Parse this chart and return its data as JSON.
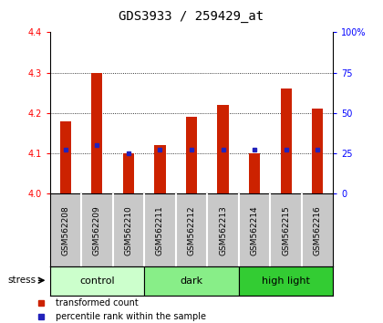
{
  "title": "GDS3933 / 259429_at",
  "samples": [
    "GSM562208",
    "GSM562209",
    "GSM562210",
    "GSM562211",
    "GSM562212",
    "GSM562213",
    "GSM562214",
    "GSM562215",
    "GSM562216"
  ],
  "bar_values": [
    4.18,
    4.3,
    4.1,
    4.12,
    4.19,
    4.22,
    4.1,
    4.26,
    4.21
  ],
  "percentile_values": [
    4.11,
    4.12,
    4.1,
    4.11,
    4.11,
    4.11,
    4.11,
    4.11,
    4.11
  ],
  "ylim": [
    4.0,
    4.4
  ],
  "yticks_left": [
    4.0,
    4.1,
    4.2,
    4.3,
    4.4
  ],
  "yticks_right": [
    0,
    25,
    50,
    75,
    100
  ],
  "bar_color": "#cc2200",
  "percentile_color": "#2222bb",
  "groups": [
    {
      "label": "control",
      "start": 0,
      "end": 3,
      "color": "#ccffcc"
    },
    {
      "label": "dark",
      "start": 3,
      "end": 6,
      "color": "#88ee88"
    },
    {
      "label": "high light",
      "start": 6,
      "end": 9,
      "color": "#33cc33"
    }
  ],
  "stress_label": "stress",
  "tick_label_bg": "#c8c8c8",
  "bar_width": 0.35,
  "title_fontsize": 10,
  "tick_fontsize": 7,
  "group_fontsize": 8,
  "label_fontsize": 6.5
}
